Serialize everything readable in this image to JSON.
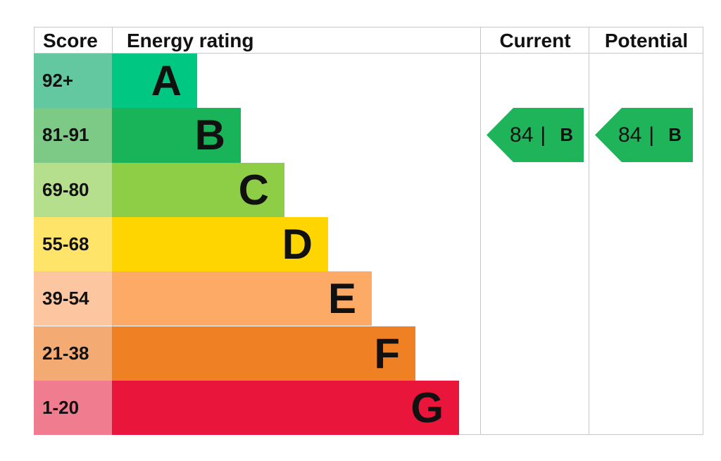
{
  "chart_data": {
    "type": "bar",
    "headers": {
      "score": "Score",
      "rating": "Energy rating",
      "current": "Current",
      "potential": "Potential"
    },
    "categories": [
      "A",
      "B",
      "C",
      "D",
      "E",
      "F",
      "G"
    ],
    "score_ranges": [
      "92+",
      "81-91",
      "69-80",
      "55-68",
      "39-54",
      "21-38",
      "1-20"
    ],
    "band_colors": [
      "#00c781",
      "#19b459",
      "#8dce46",
      "#ffd500",
      "#fcaa65",
      "#ef8023",
      "#e9153b"
    ],
    "score_colors": [
      "#63c7a0",
      "#7dca87",
      "#b6df8d",
      "#ffe46a",
      "#fcc6a0",
      "#f4ab73",
      "#ef7d8f"
    ],
    "current": {
      "value": "84",
      "separator": "|",
      "band": "B",
      "color": "#1fb35a"
    },
    "potential": {
      "value": "84",
      "separator": "|",
      "band": "B",
      "color": "#1fb35a"
    }
  }
}
